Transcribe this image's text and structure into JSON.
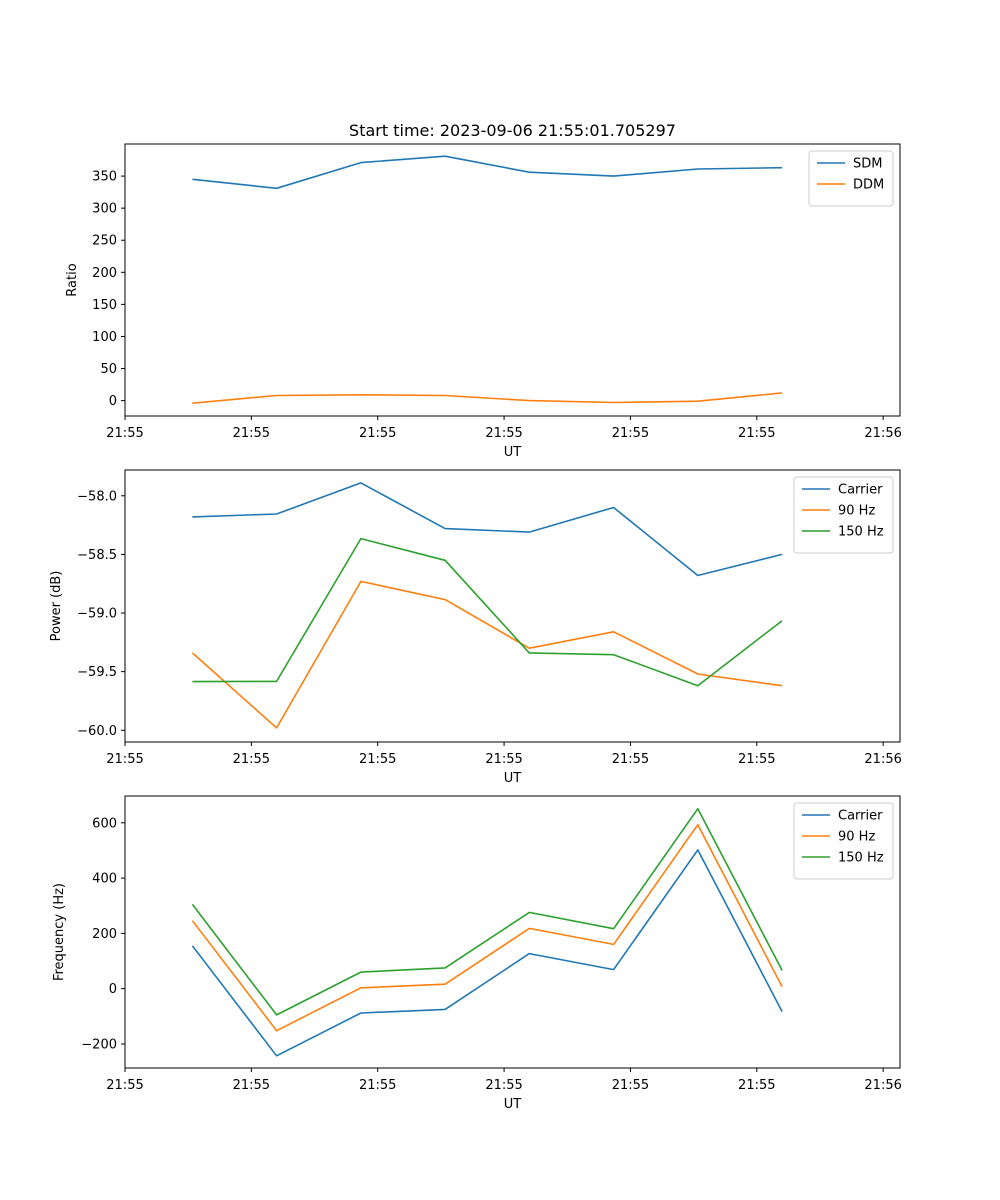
{
  "figure_title": "Start time: 2023-09-06 21:55:01.705297",
  "chart_data": [
    {
      "type": "line",
      "title": "Start time: 2023-09-06 21:55:01.705297",
      "xlabel": "UT",
      "ylabel": "Ratio",
      "x": [
        1,
        2,
        3,
        4,
        5,
        6,
        7,
        8
      ],
      "xlim": [
        0.2,
        9.4
      ],
      "x_ticks": [
        0.2,
        1.7,
        3.2,
        4.7,
        6.2,
        7.7,
        9.2
      ],
      "x_tick_labels": [
        "21:55",
        "21:55",
        "21:55",
        "21:55",
        "21:55",
        "21:55",
        "21:56"
      ],
      "ylim": [
        -24,
        400
      ],
      "y_ticks": [
        0,
        50,
        100,
        150,
        200,
        250,
        300,
        350
      ],
      "y_tick_labels": [
        "0",
        "50",
        "100",
        "150",
        "200",
        "250",
        "300",
        "350"
      ],
      "legend_position": "top-right",
      "series": [
        {
          "name": "SDM",
          "color": "#1f77b4",
          "values": [
            345,
            331,
            371,
            381,
            356,
            350,
            361,
            363
          ]
        },
        {
          "name": "DDM",
          "color": "#ff7f0e",
          "values": [
            -4,
            8,
            9,
            8,
            0,
            -3,
            -1,
            12
          ]
        }
      ]
    },
    {
      "type": "line",
      "title": "",
      "xlabel": "UT",
      "ylabel": "Power (dB)",
      "x": [
        1,
        2,
        3,
        4,
        5,
        6,
        7,
        8
      ],
      "xlim": [
        0.2,
        9.4
      ],
      "x_ticks": [
        0.2,
        1.7,
        3.2,
        4.7,
        6.2,
        7.7,
        9.2
      ],
      "x_tick_labels": [
        "21:55",
        "21:55",
        "21:55",
        "21:55",
        "21:55",
        "21:55",
        "21:56"
      ],
      "ylim": [
        -60.1,
        -57.78
      ],
      "y_ticks": [
        -60.0,
        -59.5,
        -59.0,
        -58.5,
        -58.0
      ],
      "y_tick_labels": [
        "−60.0",
        "−59.5",
        "−59.0",
        "−58.5",
        "−58.0"
      ],
      "legend_position": "top-right",
      "series": [
        {
          "name": "Carrier",
          "color": "#1f77b4",
          "values": [
            -58.18,
            -58.155,
            -57.89,
            -58.28,
            -58.31,
            -58.1,
            -58.68,
            -58.5
          ]
        },
        {
          "name": "90 Hz",
          "color": "#ff7f0e",
          "values": [
            -59.34,
            -59.98,
            -58.73,
            -58.885,
            -59.3,
            -59.16,
            -59.52,
            -59.62
          ]
        },
        {
          "name": "150 Hz",
          "color": "#2ca02c",
          "values": [
            -59.585,
            -59.583,
            -58.365,
            -58.55,
            -59.34,
            -59.355,
            -59.62,
            -59.065
          ]
        }
      ]
    },
    {
      "type": "line",
      "title": "",
      "xlabel": "UT",
      "ylabel": "Frequency (Hz)",
      "x": [
        1,
        2,
        3,
        4,
        5,
        6,
        7,
        8
      ],
      "xlim": [
        0.2,
        9.4
      ],
      "x_ticks": [
        0.2,
        1.7,
        3.2,
        4.7,
        6.2,
        7.7,
        9.2
      ],
      "x_tick_labels": [
        "21:55",
        "21:55",
        "21:55",
        "21:55",
        "21:55",
        "21:55",
        "21:56"
      ],
      "ylim": [
        -287,
        697
      ],
      "y_ticks": [
        -200,
        0,
        200,
        400,
        600
      ],
      "y_tick_labels": [
        "−200",
        "0",
        "200",
        "400",
        "600"
      ],
      "legend_position": "top-right",
      "series": [
        {
          "name": "Carrier",
          "color": "#1f77b4",
          "values": [
            155,
            -243,
            -88,
            -75,
            127,
            69,
            502,
            -83
          ]
        },
        {
          "name": "90 Hz",
          "color": "#ff7f0e",
          "values": [
            246,
            -152,
            3,
            16,
            218,
            160,
            593,
            7
          ]
        },
        {
          "name": "150 Hz",
          "color": "#2ca02c",
          "values": [
            305,
            -95,
            60,
            75,
            276,
            217,
            651,
            66
          ]
        }
      ]
    }
  ]
}
